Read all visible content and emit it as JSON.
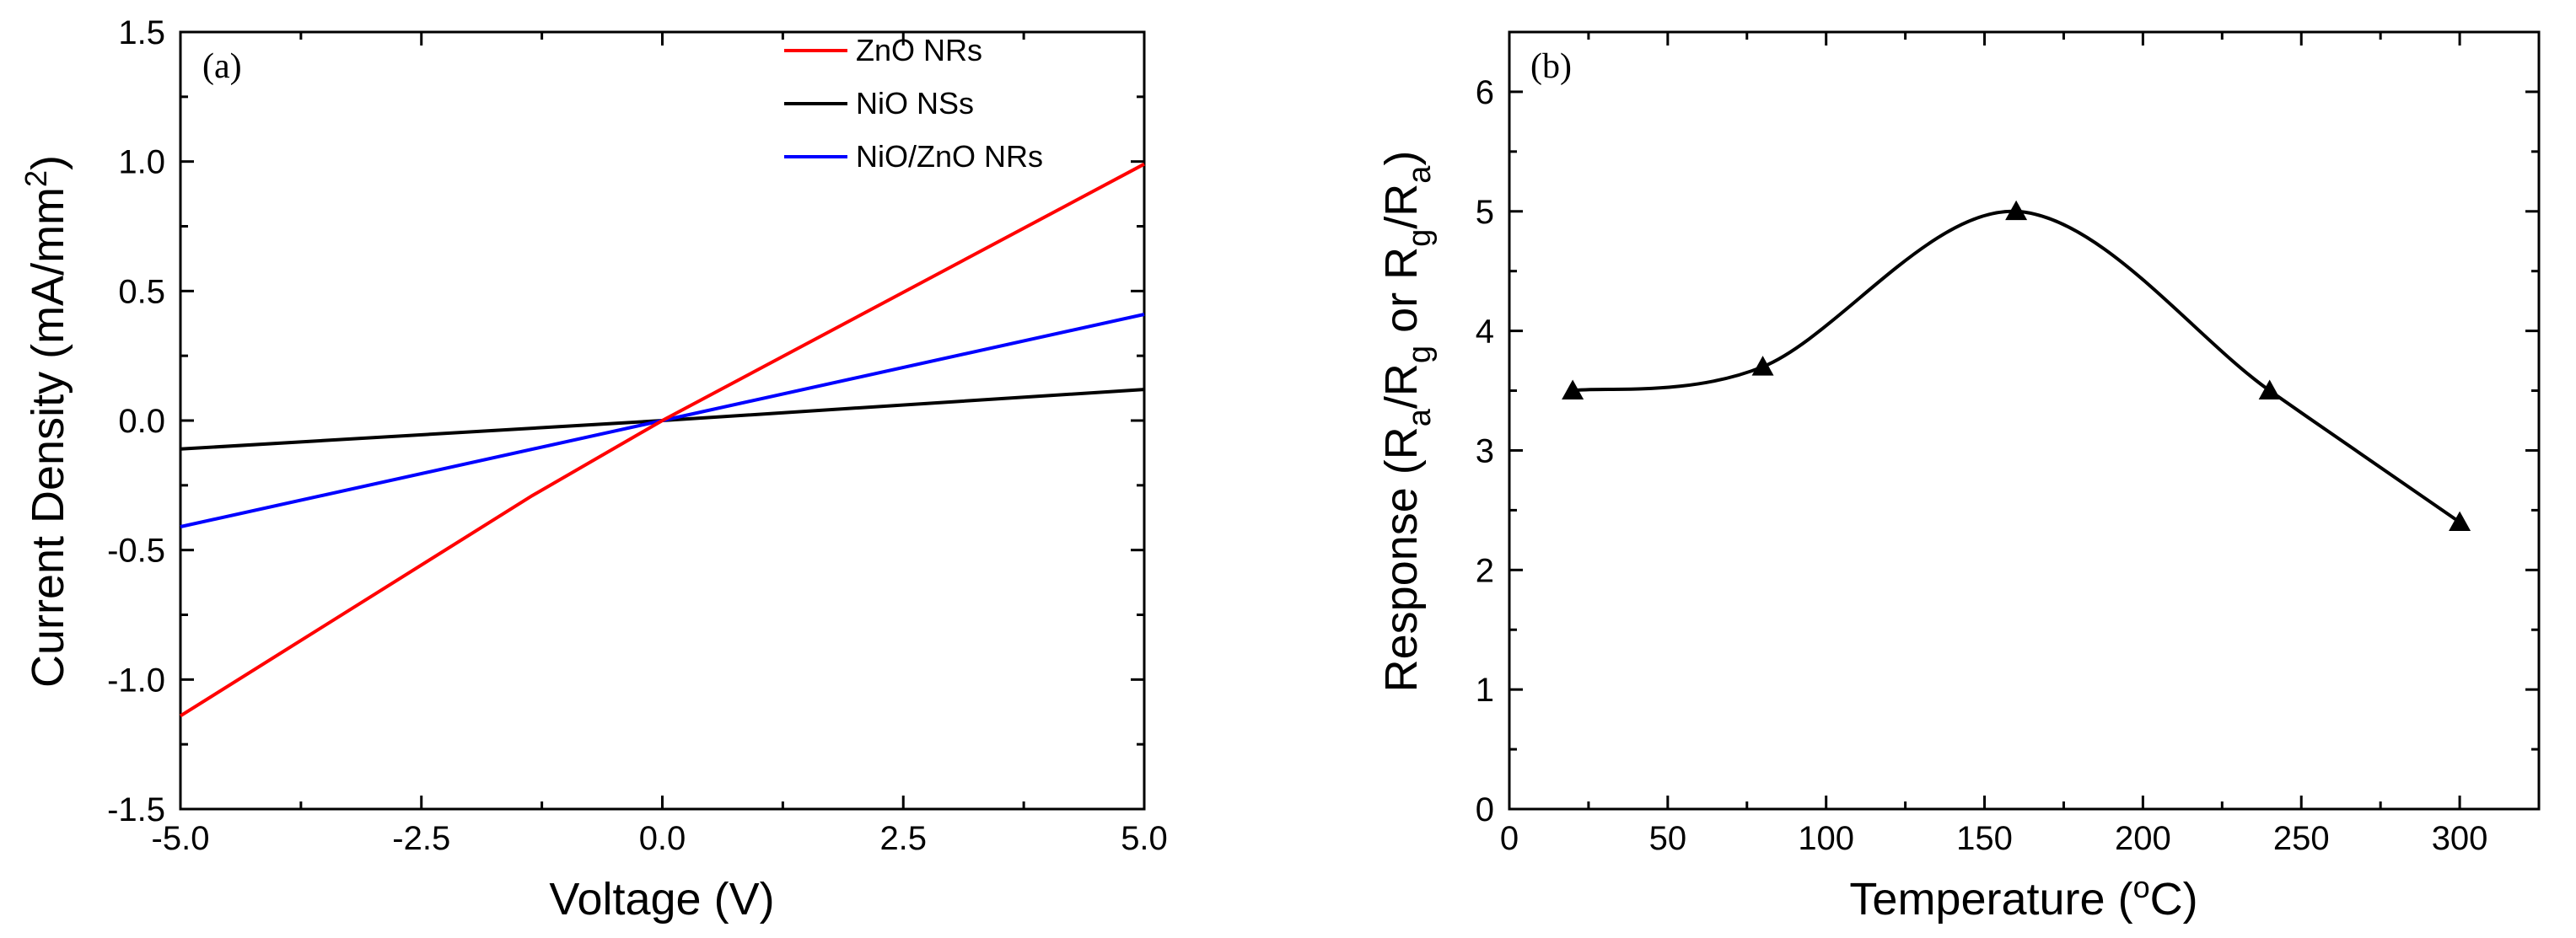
{
  "chart_data": [
    {
      "panel": "(a)",
      "type": "line",
      "xlabel": "Voltage (V)",
      "ylabel_main": "Current Density (mA/mm",
      "ylabel_sup": "2",
      "ylabel_end": ")",
      "xlim": [
        -5.0,
        5.0
      ],
      "ylim": [
        -1.5,
        1.5
      ],
      "xticks": [
        -5.0,
        -2.5,
        0.0,
        2.5,
        5.0
      ],
      "xtick_labels": [
        "-5.0",
        "-2.5",
        "0.0",
        "2.5",
        "5.0"
      ],
      "yticks": [
        -1.5,
        -1.0,
        -0.5,
        0.0,
        0.5,
        1.0,
        1.5
      ],
      "ytick_labels": [
        "-1.5",
        "-1.0",
        "-0.5",
        "0.0",
        "0.5",
        "1.0",
        "1.5"
      ],
      "legend_position": "top-right",
      "series": [
        {
          "name": "ZnO NRs",
          "color": "#ff0000",
          "x": [
            -5.0,
            -1.35,
            0.0,
            5.0
          ],
          "y": [
            -1.14,
            -0.29,
            0.0,
            0.99
          ]
        },
        {
          "name": "NiO NSs",
          "color": "#000000",
          "x": [
            -5.0,
            0.0,
            5.0
          ],
          "y": [
            -0.11,
            0.0,
            0.12
          ]
        },
        {
          "name": "NiO/ZnO NRs",
          "color": "#0000ff",
          "x": [
            -5.0,
            0.0,
            5.0
          ],
          "y": [
            -0.41,
            0.0,
            0.41
          ]
        }
      ]
    },
    {
      "panel": "(b)",
      "type": "line",
      "xlabel_main": "Temperature (",
      "xlabel_sup": "o",
      "xlabel_end": "C)",
      "ylabel_parts": [
        "Response (R",
        "a",
        "/R",
        "g",
        " or R",
        "g",
        "/R",
        "a",
        ")"
      ],
      "xlim": [
        0,
        325
      ],
      "ylim": [
        0,
        6.5
      ],
      "xticks": [
        0,
        50,
        100,
        150,
        200,
        250,
        300
      ],
      "xtick_labels": [
        "0",
        "50",
        "100",
        "150",
        "200",
        "250",
        "300"
      ],
      "yticks": [
        0,
        1,
        2,
        3,
        4,
        5,
        6
      ],
      "ytick_labels": [
        "0",
        "1",
        "2",
        "3",
        "4",
        "5",
        "6"
      ],
      "series": [
        {
          "name": "Response",
          "color": "#000000",
          "marker": "triangle",
          "x": [
            20,
            80,
            160,
            240,
            300
          ],
          "y": [
            3.5,
            3.7,
            5.0,
            3.5,
            2.4
          ]
        }
      ]
    }
  ]
}
